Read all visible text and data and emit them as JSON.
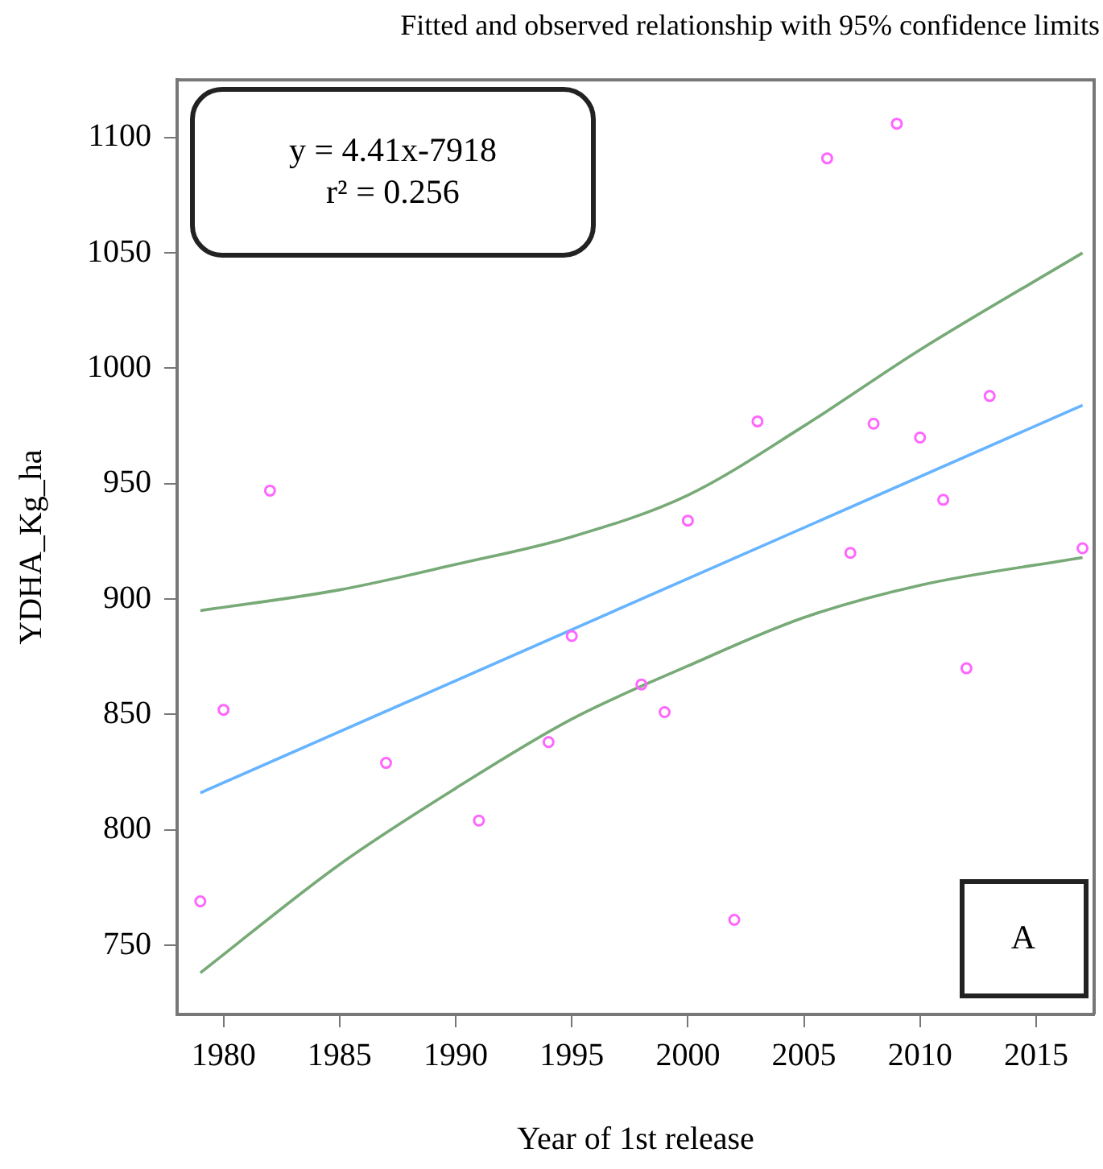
{
  "chart_data": {
    "type": "scatter",
    "title": "Fitted and observed relationship with 95% confidence limits",
    "xlabel": "Year of 1st release",
    "ylabel": "YDHA_Kg_ha",
    "annotations": [
      "y = 4.41x-7918\nr² = 0.256",
      "A"
    ],
    "x": [
      1979,
      1980,
      1982,
      1987,
      1991,
      1994,
      1995,
      1998,
      1999,
      2000,
      2002,
      2003,
      2006,
      2007,
      2008,
      2009,
      2010,
      2011,
      2012,
      2013,
      2017
    ],
    "series": [
      {
        "color": "#ff66ff",
        "marker": "circle",
        "values": [
          769,
          852,
          947,
          829,
          804,
          838,
          884,
          863,
          851,
          934,
          761,
          977,
          1091,
          920,
          976,
          1106,
          970,
          943,
          870,
          988,
          922
        ]
      },
      {
        "type": "line",
        "color": "#66b3ff",
        "x": [
          1979,
          2017
        ],
        "values": [
          816,
          984
        ]
      },
      {
        "type": "line",
        "color": "#77aa77",
        "x": [
          1979,
          1985,
          1990,
          1995,
          2000,
          2005,
          2010,
          2017
        ],
        "values": [
          895,
          904,
          915,
          927,
          945,
          975,
          1008,
          1050
        ]
      },
      {
        "type": "line",
        "color": "#77aa77",
        "x": [
          1979,
          1985,
          1990,
          1995,
          2000,
          2005,
          2010,
          2017
        ],
        "values": [
          738,
          785,
          818,
          848,
          871,
          892,
          906,
          918
        ]
      }
    ],
    "xlim": [
      1978,
      2017.5
    ],
    "xticks": [
      1980,
      1985,
      1990,
      1995,
      2000,
      2005,
      2010,
      2015
    ],
    "ylim": [
      720,
      1125
    ],
    "yticks": [
      750,
      800,
      850,
      900,
      950,
      1000,
      1050,
      1100
    ],
    "grid": false,
    "legend": false,
    "line_style": "solid"
  }
}
